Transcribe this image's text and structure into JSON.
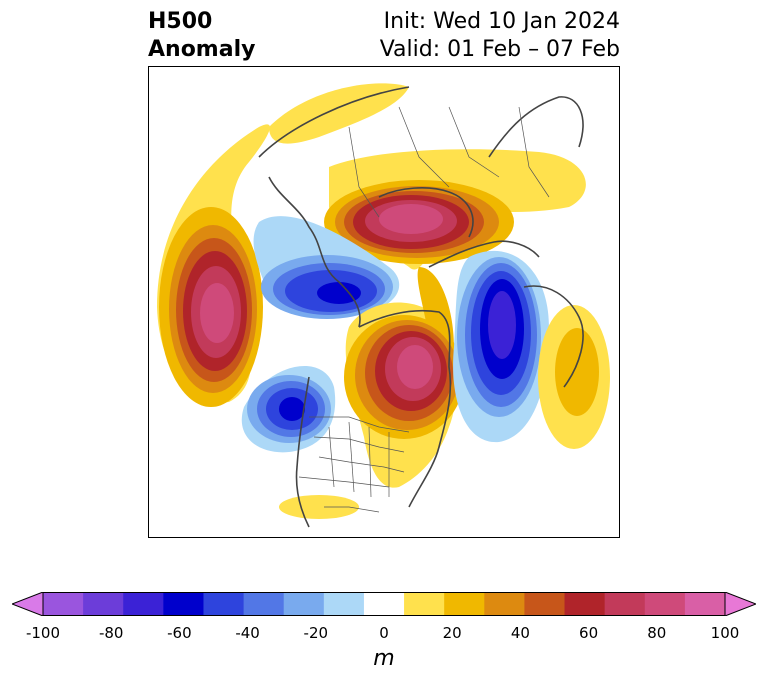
{
  "header": {
    "title_line1": "H500",
    "title_line2": "Anomaly",
    "init_text": "Init: Wed 10 Jan 2024",
    "valid_text": "Valid: 01 Feb – 07 Feb"
  },
  "colorbar": {
    "unit": "m",
    "ticks": [
      "-100",
      "-80",
      "-60",
      "-40",
      "-20",
      "0",
      "20",
      "40",
      "60",
      "80",
      "100"
    ],
    "levels": [
      -100,
      -90,
      -80,
      -70,
      -60,
      -50,
      -40,
      -30,
      -20,
      -10,
      10,
      20,
      30,
      40,
      50,
      60,
      70,
      80,
      90,
      100
    ],
    "colors": [
      "#d97ae8",
      "#9a55de",
      "#6c3dd9",
      "#3b22d6",
      "#0000cc",
      "#2e44dd",
      "#5277e6",
      "#79aaee",
      "#acd8f7",
      "#ffffff",
      "#ffe14d",
      "#f0b800",
      "#dd8a10",
      "#c7561a",
      "#b0242a",
      "#c23a5a",
      "#cf4a7a",
      "#d95fa6",
      "#e878d6"
    ],
    "extend": "both"
  },
  "map": {
    "region": "North America / North Pole (polar stereographic)",
    "anomaly_centers": [
      {
        "type": "positive",
        "max": 80,
        "location": "North Pacific (west)"
      },
      {
        "type": "positive",
        "max": 70,
        "location": "Arctic / Siberia"
      },
      {
        "type": "positive",
        "max": 70,
        "location": "Hudson Bay / Eastern Canada"
      },
      {
        "type": "positive",
        "max": 30,
        "location": "North Atlantic (east)"
      },
      {
        "type": "negative",
        "max": -60,
        "location": "Bering Sea / Alaska"
      },
      {
        "type": "negative",
        "max": -60,
        "location": "Gulf of Alaska / NE Pacific"
      },
      {
        "type": "negative",
        "max": -60,
        "location": "Greenland / North Atlantic"
      }
    ]
  }
}
